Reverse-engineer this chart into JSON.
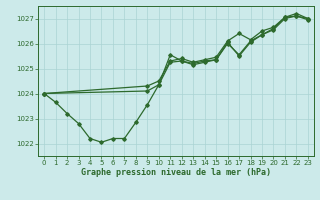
{
  "title": "Graphe pression niveau de la mer (hPa)",
  "bg_color": "#cceaea",
  "grid_color": "#aad4d4",
  "line_color": "#2d6a2d",
  "ylim": [
    1021.5,
    1027.5
  ],
  "xlim": [
    -0.5,
    23.5
  ],
  "yticks": [
    1022,
    1023,
    1024,
    1025,
    1026,
    1027
  ],
  "xticks": [
    0,
    1,
    2,
    3,
    4,
    5,
    6,
    7,
    8,
    9,
    10,
    11,
    12,
    13,
    14,
    15,
    16,
    17,
    18,
    19,
    20,
    21,
    22,
    23
  ],
  "series_zigzag": {
    "x": [
      0,
      1,
      2,
      3,
      4,
      5,
      6,
      7,
      8,
      9,
      10,
      11,
      12,
      13,
      14,
      15,
      16,
      17,
      18,
      19,
      20,
      21,
      22,
      23
    ],
    "y": [
      1024.0,
      1023.65,
      1023.2,
      1022.8,
      1022.2,
      1022.05,
      1022.2,
      1022.2,
      1022.85,
      1023.55,
      1024.35,
      1025.55,
      1025.3,
      1025.2,
      1025.3,
      1025.35,
      1026.05,
      1025.5,
      1026.05,
      1026.35,
      1026.6,
      1027.05,
      1027.1,
      1027.0
    ]
  },
  "series_upper1": {
    "x": [
      0,
      9,
      10,
      11,
      12,
      13,
      14,
      15,
      16,
      17,
      18,
      19,
      20,
      21,
      22,
      23
    ],
    "y": [
      1024.0,
      1024.3,
      1024.5,
      1025.3,
      1025.4,
      1025.25,
      1025.35,
      1025.45,
      1026.1,
      1026.4,
      1026.15,
      1026.5,
      1026.65,
      1027.05,
      1027.2,
      1027.0
    ]
  },
  "series_upper2": {
    "x": [
      0,
      9,
      10,
      11,
      12,
      13,
      14,
      15,
      16,
      17,
      18,
      19,
      20,
      21,
      22,
      23
    ],
    "y": [
      1024.0,
      1024.1,
      1024.35,
      1025.25,
      1025.3,
      1025.15,
      1025.25,
      1025.35,
      1026.0,
      1025.55,
      1026.1,
      1026.35,
      1026.55,
      1027.0,
      1027.1,
      1026.95
    ]
  }
}
